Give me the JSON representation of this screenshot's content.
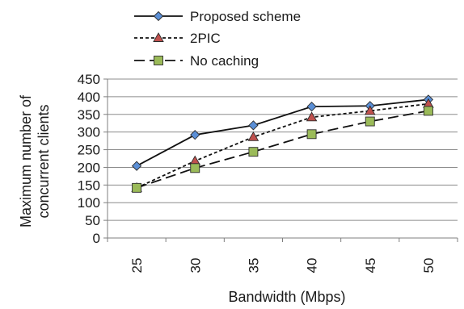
{
  "chart_data": {
    "type": "line",
    "xlabel": "Bandwidth (Mbps)",
    "ylabel_lines": [
      "Maximum number of",
      "concurrent clients"
    ],
    "categories": [
      "25",
      "30",
      "35",
      "40",
      "45",
      "50"
    ],
    "ylim": [
      0,
      450
    ],
    "yticks": [
      "0",
      "50",
      "100",
      "150",
      "200",
      "250",
      "300",
      "350",
      "400",
      "450"
    ],
    "grid": "horizontal",
    "legend": "top",
    "series": [
      {
        "name": "Proposed scheme",
        "values": [
          204,
          292,
          319,
          372,
          374,
          392
        ],
        "line_style": "solid",
        "marker": "diamond",
        "marker_color": "#5b8fd6"
      },
      {
        "name": "2PIC",
        "values": [
          142,
          218,
          286,
          342,
          360,
          380
        ],
        "line_style": "dotted",
        "marker": "triangle",
        "marker_color": "#c0504d"
      },
      {
        "name": "No caching",
        "values": [
          142,
          198,
          244,
          294,
          330,
          360
        ],
        "line_style": "dashed",
        "marker": "square",
        "marker_color": "#9bbb59"
      }
    ]
  }
}
